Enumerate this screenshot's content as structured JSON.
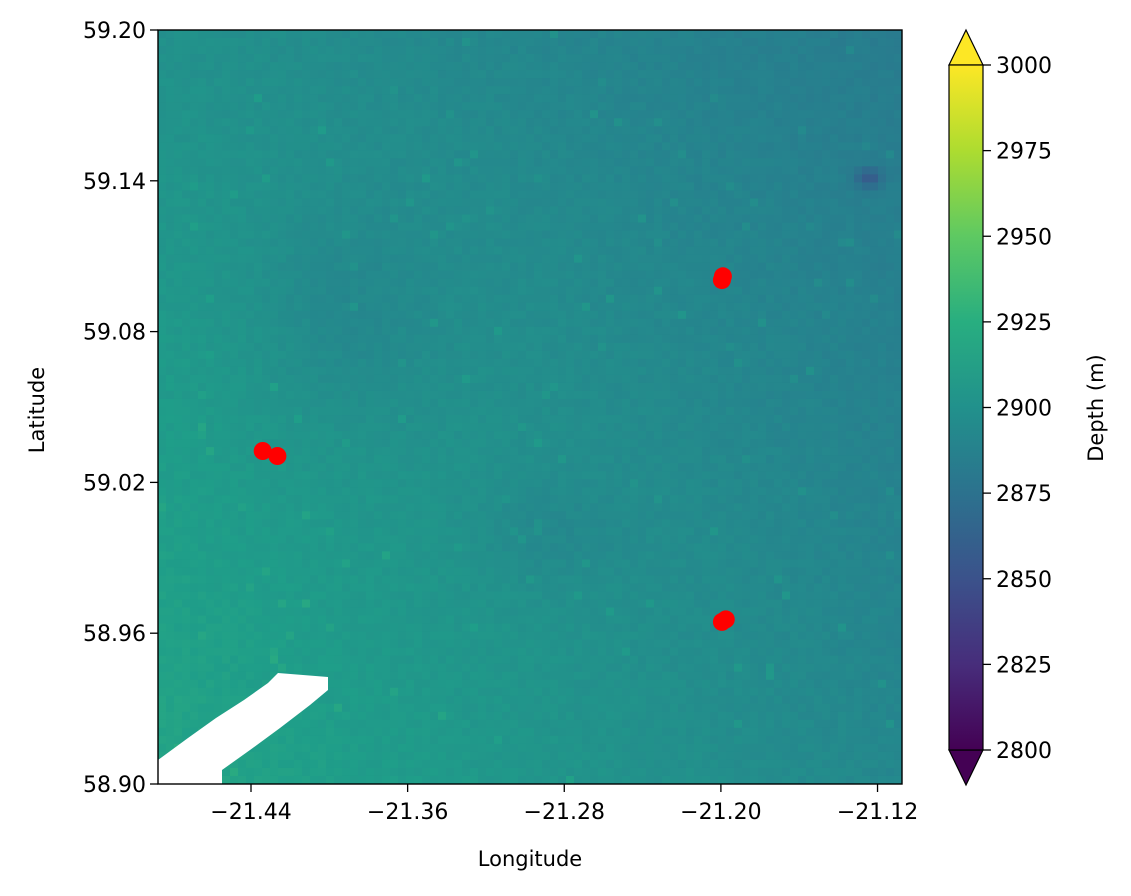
{
  "chart_data": {
    "type": "heatmap",
    "title": "",
    "xlabel": "Longitude",
    "ylabel": "Latitude",
    "xlim": [
      -21.4875,
      -21.1075
    ],
    "ylim": [
      58.9,
      59.2
    ],
    "xticks": [
      -21.44,
      -21.36,
      -21.28,
      -21.2,
      -21.12
    ],
    "xtick_labels": [
      "−21.44",
      "−21.36",
      "−21.28",
      "−21.20",
      "−21.12"
    ],
    "yticks": [
      58.9,
      58.96,
      59.02,
      59.08,
      59.14,
      59.2
    ],
    "ytick_labels": [
      "58.90",
      "58.96",
      "59.02",
      "59.08",
      "59.14",
      "59.20"
    ],
    "colormap": "viridis",
    "colorbar": {
      "label": "Depth (m)",
      "range": [
        2800,
        3000
      ],
      "extend": "both",
      "ticks": [
        2800,
        2825,
        2850,
        2875,
        2900,
        2925,
        2950,
        2975,
        3000
      ],
      "tick_labels": [
        "2800",
        "2825",
        "2850",
        "2875",
        "2900",
        "2925",
        "2950",
        "2975",
        "3000"
      ]
    },
    "depth_field_description": "bathymetry approx. 2860-2930 m; shallower (greener ~2915-2930 m) in the south-west, deeper (bluer ~2860-2875 m) toward the north-east; small deep spot ~2845 m near (-21.125, 59.141); no-data gap in the south-west corner",
    "points": {
      "color": "#ff0000",
      "x": [
        -21.434,
        -21.4265,
        -21.1995,
        -21.199,
        -21.1995,
        -21.1975
      ],
      "y": [
        59.0325,
        59.0305,
        59.1005,
        59.102,
        58.9645,
        58.9655
      ]
    },
    "grid": false
  }
}
